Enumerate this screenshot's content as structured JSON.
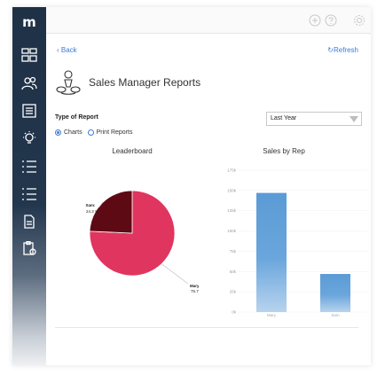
{
  "app": {
    "logo": "m"
  },
  "nav": {
    "back": "Back",
    "refresh": "Refresh"
  },
  "page": {
    "title": "Sales Manager Reports"
  },
  "report_type": {
    "label": "Type of Report",
    "options": [
      "Charts",
      "Print Reports"
    ],
    "selected": "Charts"
  },
  "period_select": {
    "value": "Last Year"
  },
  "sidebar_icons": [
    "dashboard-icon",
    "users-icon",
    "list-icon",
    "lightbulb-icon",
    "checklist-icon",
    "checklist-icon",
    "document-icon",
    "clipboard-icon"
  ],
  "colors": {
    "accent": "#3a7bd5",
    "sidebar": "#1f3146",
    "pie_mary": "#e0355f",
    "pie_sam": "#5e0a14",
    "bar": "#5b9bd5"
  },
  "chart_data": [
    {
      "type": "pie",
      "title": "Leaderboard",
      "slices": [
        {
          "label": "Mary:",
          "percent_label": "75.7 %",
          "value": 75.7
        },
        {
          "label": "Sam:",
          "percent_label": "24.3 %",
          "value": 24.3
        }
      ]
    },
    {
      "type": "bar",
      "title": "Sales by Rep",
      "categories": [
        "Mary",
        "Sam"
      ],
      "values": [
        147000,
        47000
      ],
      "ylim": [
        0,
        175000
      ],
      "yticks": [
        "0k",
        "25k",
        "50k",
        "75k",
        "100k",
        "125k",
        "150k",
        "175k"
      ],
      "ytick_values": [
        0,
        25000,
        50000,
        75000,
        100000,
        125000,
        150000,
        175000
      ]
    }
  ]
}
